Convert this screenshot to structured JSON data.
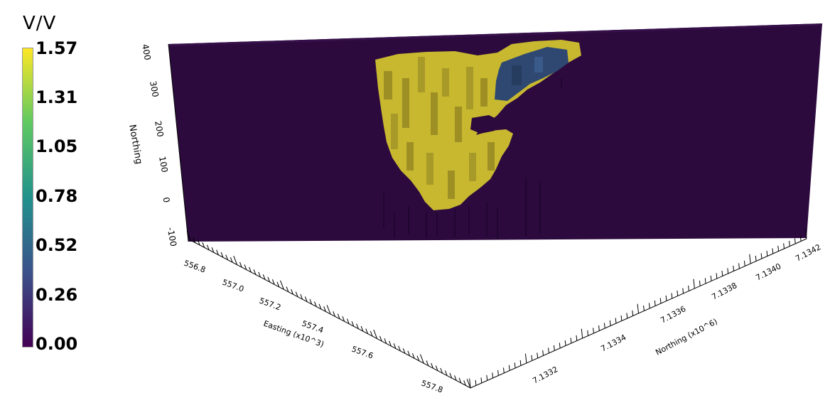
{
  "colorbar": {
    "title": "V/V",
    "ticks": [
      "1.57",
      "1.31",
      "1.05",
      "0.78",
      "0.52",
      "0.26",
      "0.00"
    ],
    "min": 0.0,
    "max": 1.57,
    "colors": [
      "#440154",
      "#3b528b",
      "#21918c",
      "#5ec962",
      "#fde725"
    ]
  },
  "chart_data": {
    "type": "3d-volume",
    "vertical_axis": {
      "label": "Northing",
      "ticks": [
        "400",
        "300",
        "200",
        "100",
        "0",
        "-100"
      ]
    },
    "easting_axis": {
      "label": "Easting (x10^3)",
      "ticks": [
        "556.8",
        "557.0",
        "557.2",
        "557.4",
        "557.6",
        "557.8"
      ]
    },
    "northing_axis": {
      "label": "Northing (x10^6)",
      "ticks": [
        "7.1332",
        "7.1334",
        "7.1336",
        "7.1338",
        "7.1340",
        "7.1342"
      ]
    },
    "background_value": 0.0,
    "body_colors": {
      "background": "#2d0a3e",
      "high": "#c8b830",
      "mid": "#2e4872"
    },
    "range": [
      0.0,
      1.57
    ]
  }
}
